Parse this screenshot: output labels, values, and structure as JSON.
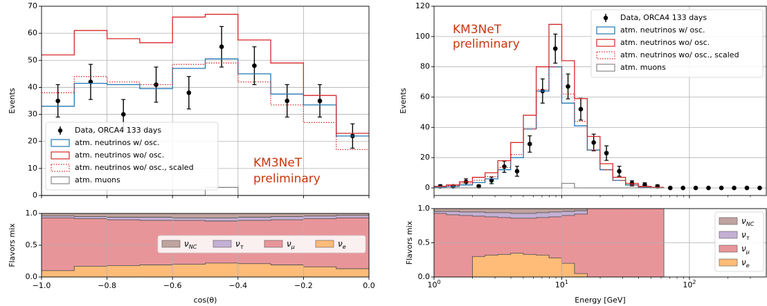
{
  "chart_data": [
    {
      "type": "histogram",
      "xlabel": "",
      "ylabel": "Events",
      "xlim": [
        -1.0,
        0.0
      ],
      "ylim": [
        0,
        70
      ],
      "xticks": [
        -1.0,
        -0.8,
        -0.6,
        -0.4,
        -0.2,
        0.0
      ],
      "yticks": [
        0,
        10,
        20,
        30,
        40,
        50,
        60,
        70
      ],
      "ytick_labels": [
        "0",
        "10",
        "20",
        "30",
        "40",
        "50",
        "60",
        "70"
      ],
      "grid": true,
      "legend_position": "bottom-left",
      "annotation": [
        "KM3NeT",
        "preliminary"
      ],
      "bin_edges": [
        -1.0,
        -0.9,
        -0.8,
        -0.7,
        -0.6,
        -0.5,
        -0.4,
        -0.3,
        -0.2,
        -0.1,
        0.0
      ],
      "series": [
        {
          "name": "Data, ORCA4 133 days",
          "kind": "errorbar",
          "color": "#000000",
          "x": [
            -0.95,
            -0.85,
            -0.75,
            -0.65,
            -0.55,
            -0.45,
            -0.35,
            -0.25,
            -0.15,
            -0.05
          ],
          "y": [
            35,
            42,
            30,
            41,
            38,
            55,
            48,
            35,
            35,
            22
          ],
          "yerr": [
            6,
            6.5,
            5.5,
            6.5,
            6,
            7.5,
            7,
            6,
            6,
            4.5
          ]
        },
        {
          "name": "atm. neutrinos w/ osc.",
          "kind": "step",
          "color": "#1f77b4",
          "values": [
            33,
            41.5,
            41,
            39.5,
            47,
            50.5,
            45,
            37.5,
            33.5,
            22
          ]
        },
        {
          "name": "atm. neutrinos wo/ osc.",
          "kind": "step",
          "color": "#d62728",
          "values": [
            52,
            61,
            58,
            56.5,
            66,
            67,
            57.5,
            49,
            37,
            23
          ]
        },
        {
          "name": "atm. neutrinos wo/ osc., scaled",
          "kind": "step-dotted",
          "color": "#d62728",
          "values": [
            38,
            44,
            42,
            41,
            48.5,
            49,
            42,
            33.5,
            27,
            17
          ]
        },
        {
          "name": "atm. muons",
          "kind": "step",
          "color": "#888888",
          "values": [
            0,
            0,
            0,
            0,
            0,
            3,
            0,
            0,
            0,
            0
          ]
        }
      ]
    },
    {
      "type": "histogram",
      "xlabel": "",
      "ylabel": "Events",
      "xscale": "log",
      "xlim": [
        1.0,
        400
      ],
      "ylim": [
        -5,
        120
      ],
      "yticks": [
        0,
        20,
        40,
        60,
        80,
        100,
        120
      ],
      "ytick_labels": [
        "0",
        "20",
        "40",
        "60",
        "80",
        "100",
        "120"
      ],
      "grid": true,
      "legend_position": "top-right",
      "annotation": [
        "KM3NeT",
        "preliminary"
      ],
      "bin_edges": [
        1.0,
        1.25,
        1.58,
        2.0,
        2.51,
        3.16,
        3.98,
        5.01,
        6.31,
        7.94,
        10.0,
        12.59,
        15.85,
        19.95,
        25.12,
        31.62,
        39.81,
        50.12,
        63.1
      ],
      "series": [
        {
          "name": "Data, ORCA4 133 days",
          "kind": "errorbar",
          "color": "#000000",
          "x": [
            1.12,
            1.41,
            1.78,
            2.24,
            2.82,
            3.55,
            4.47,
            5.62,
            7.08,
            8.91,
            11.2,
            14.1,
            17.8,
            22.4,
            28.2,
            35.5,
            44.7,
            56.2,
            70.8,
            89.1,
            112,
            141,
            178,
            224,
            282,
            355
          ],
          "y": [
            1,
            1,
            4,
            1,
            5,
            14,
            11,
            29,
            64,
            92,
            67,
            52,
            30,
            23,
            11,
            3,
            2,
            1,
            0,
            0,
            0,
            0,
            0,
            0,
            0,
            0
          ],
          "yerr": [
            1,
            1,
            2,
            1,
            2.2,
            3.7,
            3.3,
            5.4,
            8,
            9.6,
            8.2,
            7.2,
            5.5,
            4.8,
            3.3,
            1.7,
            1.4,
            1,
            0,
            0,
            0,
            0,
            0,
            0,
            0,
            0
          ]
        },
        {
          "name": "atm. neutrinos w/ osc.",
          "kind": "step",
          "color": "#1f77b4",
          "values": [
            0.5,
            1,
            2,
            3.5,
            6,
            12,
            20,
            39,
            64,
            80,
            56,
            41,
            25,
            12,
            5,
            2,
            0.5,
            0.2
          ]
        },
        {
          "name": "atm. neutrinos wo/ osc.",
          "kind": "step",
          "color": "#d62728",
          "values": [
            1,
            2,
            4,
            7,
            10,
            18,
            30,
            48,
            80,
            108,
            84,
            59,
            34,
            16,
            7,
            3,
            1,
            0.4
          ]
        },
        {
          "name": "atm. neutrinos wo/ osc., scaled",
          "kind": "step-dotted",
          "color": "#d62728",
          "values": [
            1,
            1.5,
            3,
            5,
            7.5,
            13.5,
            22,
            39,
            65,
            80,
            62,
            44,
            25,
            12,
            5,
            2,
            0.7,
            0.3
          ]
        },
        {
          "name": "atm. muons",
          "kind": "step",
          "color": "#888888",
          "values": [
            0,
            0,
            0,
            0,
            0,
            0,
            0,
            0,
            0,
            0,
            3,
            0,
            0,
            0,
            0,
            0,
            0,
            0
          ]
        }
      ]
    },
    {
      "type": "area",
      "stacked": true,
      "xlabel": "cos(θ)",
      "ylabel": "Flavors mix",
      "xlim": [
        -1.0,
        0.0
      ],
      "ylim": [
        0,
        1.0
      ],
      "xticks": [
        -1.0,
        -0.8,
        -0.6,
        -0.4,
        -0.2,
        0.0
      ],
      "xtick_labels": [
        "−1.0",
        "−0.8",
        "−0.6",
        "−0.4",
        "−0.2",
        "0.0"
      ],
      "yticks": [
        0.0,
        0.5,
        1.0
      ],
      "ytick_labels": [
        "0.0",
        "0.5",
        "1.0"
      ],
      "grid": true,
      "legend_position": "center-right",
      "bin_edges": [
        -1.0,
        -0.9,
        -0.8,
        -0.7,
        -0.6,
        -0.5,
        -0.4,
        -0.3,
        -0.2,
        -0.1,
        0.0
      ],
      "cumulative": {
        "nu_e": [
          0.1,
          0.17,
          0.18,
          0.19,
          0.2,
          0.22,
          0.21,
          0.19,
          0.16,
          0.13
        ],
        "nu_mu": [
          0.93,
          0.92,
          0.9,
          0.89,
          0.89,
          0.88,
          0.89,
          0.9,
          0.92,
          0.93
        ],
        "nu_tau": [
          0.96,
          0.95,
          0.94,
          0.94,
          0.93,
          0.93,
          0.94,
          0.95,
          0.96,
          0.97
        ],
        "nu_nc": [
          1,
          1,
          1,
          1,
          1,
          1,
          1,
          1,
          1,
          1
        ]
      },
      "series": [
        {
          "key": "nu_nc",
          "label": "NC",
          "name": "ν_NC",
          "color": "#c0a39e"
        },
        {
          "key": "nu_tau",
          "label": "τ",
          "name": "ν_τ",
          "color": "#c5b0d5"
        },
        {
          "key": "nu_mu",
          "label": "μ",
          "name": "ν_μ",
          "color": "#e8959a"
        },
        {
          "key": "nu_e",
          "label": "e",
          "name": "ν_e",
          "color": "#ffbb78"
        }
      ]
    },
    {
      "type": "area",
      "stacked": true,
      "xlabel": "Energy [GeV]",
      "ylabel": "Flavors mix",
      "xscale": "log",
      "xlim": [
        1.0,
        400
      ],
      "ylim": [
        0,
        1.0
      ],
      "xticks": [
        1,
        10,
        100
      ],
      "xtick_labels": [
        "10",
        "10",
        "10"
      ],
      "xtick_exponents": [
        "0",
        "1",
        "2"
      ],
      "yticks": [
        0.0,
        0.5,
        1.0
      ],
      "ytick_labels": [
        "0.0",
        "0.5",
        "1.0"
      ],
      "grid": true,
      "legend_position": "right",
      "bin_edges": [
        1.0,
        1.25,
        1.58,
        2.0,
        2.51,
        3.16,
        3.98,
        5.01,
        6.31,
        7.94,
        10.0,
        12.59,
        15.85,
        19.95,
        25.12,
        31.62,
        39.81,
        50.12,
        63.1
      ],
      "cumulative": {
        "nu_e": [
          0.0,
          0.0,
          0.0,
          0.3,
          0.32,
          0.33,
          0.35,
          0.33,
          0.32,
          0.28,
          0.2,
          0.05,
          0,
          0,
          0,
          0,
          0,
          0
        ],
        "nu_mu": [
          0.93,
          0.91,
          0.9,
          0.89,
          0.88,
          0.87,
          0.86,
          0.86,
          0.87,
          0.88,
          0.9,
          0.92,
          1,
          1,
          1,
          1,
          1,
          1
        ],
        "nu_tau": [
          0.96,
          0.96,
          0.95,
          0.95,
          0.94,
          0.94,
          0.93,
          0.93,
          0.94,
          0.95,
          0.96,
          0.97,
          1,
          1,
          1,
          1,
          1,
          1
        ],
        "nu_nc": [
          1,
          1,
          1,
          1,
          1,
          1,
          1,
          1,
          1,
          1,
          1,
          1,
          1,
          1,
          1,
          1,
          1,
          1
        ]
      },
      "series": [
        {
          "key": "nu_nc",
          "label": "NC",
          "name": "ν_NC",
          "color": "#c0a39e"
        },
        {
          "key": "nu_tau",
          "label": "τ",
          "name": "ν_τ",
          "color": "#c5b0d5"
        },
        {
          "key": "nu_mu",
          "label": "μ",
          "name": "ν_μ",
          "color": "#e8959a"
        },
        {
          "key": "nu_e",
          "label": "e",
          "name": "ν_e",
          "color": "#ffbb78"
        }
      ]
    }
  ]
}
